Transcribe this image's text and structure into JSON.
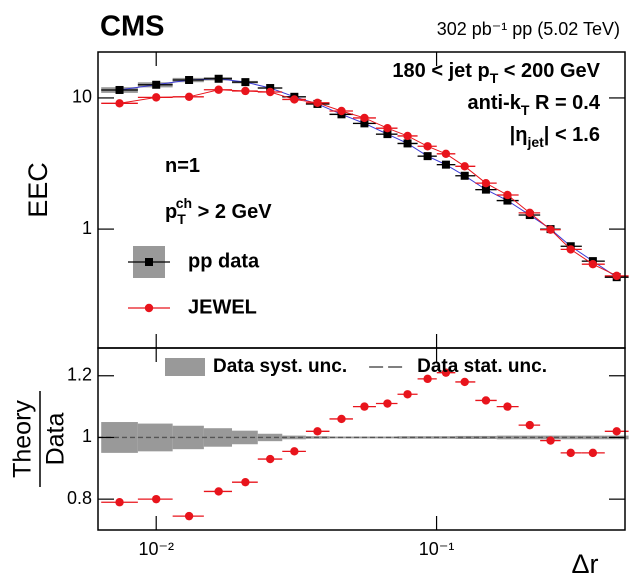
{
  "chart_data": {
    "type": "ratio",
    "title": "CMS",
    "subtitle": "302 pb⁻¹ pp (5.02 TeV)",
    "xlabel": "Δr",
    "x": [
      0.0074,
      0.01,
      0.0131,
      0.0167,
      0.0208,
      0.0255,
      0.0311,
      0.0376,
      0.0458,
      0.0553,
      0.0668,
      0.0788,
      0.0929,
      0.108,
      0.126,
      0.15,
      0.179,
      0.215,
      0.255,
      0.301,
      0.361,
      0.439
    ],
    "xlim": [
      0.0062,
      0.47
    ],
    "xlog": true,
    "xticks": [
      {
        "value": 0.01,
        "label": "10⁻²"
      },
      {
        "value": 0.1,
        "label": "10⁻¹"
      }
    ],
    "annotations": [
      [
        {
          "text": "180 < jet p"
        },
        {
          "text": "T",
          "sub": true
        },
        {
          "text": " < 200 GeV"
        }
      ],
      [
        {
          "text": "anti-k"
        },
        {
          "text": "T",
          "sub": true
        },
        {
          "text": " R = 0.4"
        }
      ],
      [
        {
          "text": "|η"
        },
        {
          "text": "jet",
          "sub": true
        },
        {
          "text": "| < 1.6"
        }
      ],
      [
        {
          "text": "n=1"
        }
      ],
      [
        {
          "text": "p"
        },
        {
          "text": "T",
          "sub": true
        },
        {
          "text": "ch",
          "sup": true
        },
        {
          "text": " > 2 GeV"
        }
      ]
    ],
    "panels": [
      {
        "ylabel": [
          "EEC"
        ],
        "ylog": true,
        "ylim": [
          0.124,
          22.4
        ],
        "yticks": [
          1,
          10
        ],
        "series": [
          {
            "name": "pp data",
            "color": "#000000",
            "line": "#3b3bd6",
            "marker": "square",
            "values": [
              11.5,
              12.6,
              13.7,
              14.0,
              13.2,
              11.9,
              10.2,
              9.0,
              7.5,
              6.4,
              5.3,
              4.5,
              3.6,
              3.1,
              2.55,
              2.0,
              1.65,
              1.28,
              1.0,
              0.74,
              0.57,
              0.43
            ]
          },
          {
            "name": "JEWEL",
            "color": "#e8141c",
            "line": "#e8141c",
            "marker": "circle",
            "values": [
              9.1,
              10.1,
              10.2,
              11.55,
              11.3,
              11.1,
              9.74,
              9.18,
              7.95,
              7.04,
              5.88,
              5.13,
              4.28,
              3.75,
              3.01,
              2.24,
              1.82,
              1.33,
              0.99,
              0.7,
              0.54,
              0.44
            ]
          }
        ]
      },
      {
        "ylabel": [
          "Theory",
          "Data"
        ],
        "ylog": false,
        "ylim": [
          0.7,
          1.29
        ],
        "yticks": [
          0.8,
          1,
          1.2
        ],
        "series": [
          {
            "name": "Data syst. unc.",
            "kind": "band",
            "color": "#999999",
            "values": [
              0.05,
              0.045,
              0.038,
              0.03,
              0.022,
              0.012,
              0.006,
              0.004,
              0.003,
              0.003,
              0.003,
              0.004,
              0.004,
              0.004,
              0.005,
              0.005,
              0.006,
              0.006,
              0.006,
              0.006,
              0.006,
              0.006
            ]
          },
          {
            "name": "Data stat. unc.",
            "kind": "dashed",
            "color": "#555555"
          },
          {
            "color": "#e8141c",
            "marker": "circle",
            "values": [
              0.79,
              0.8,
              0.745,
              0.825,
              0.855,
              0.93,
              0.955,
              1.02,
              1.06,
              1.1,
              1.11,
              1.14,
              1.19,
              1.21,
              1.18,
              1.12,
              1.1,
              1.04,
              0.99,
              0.95,
              0.95,
              1.02
            ]
          }
        ]
      }
    ]
  }
}
